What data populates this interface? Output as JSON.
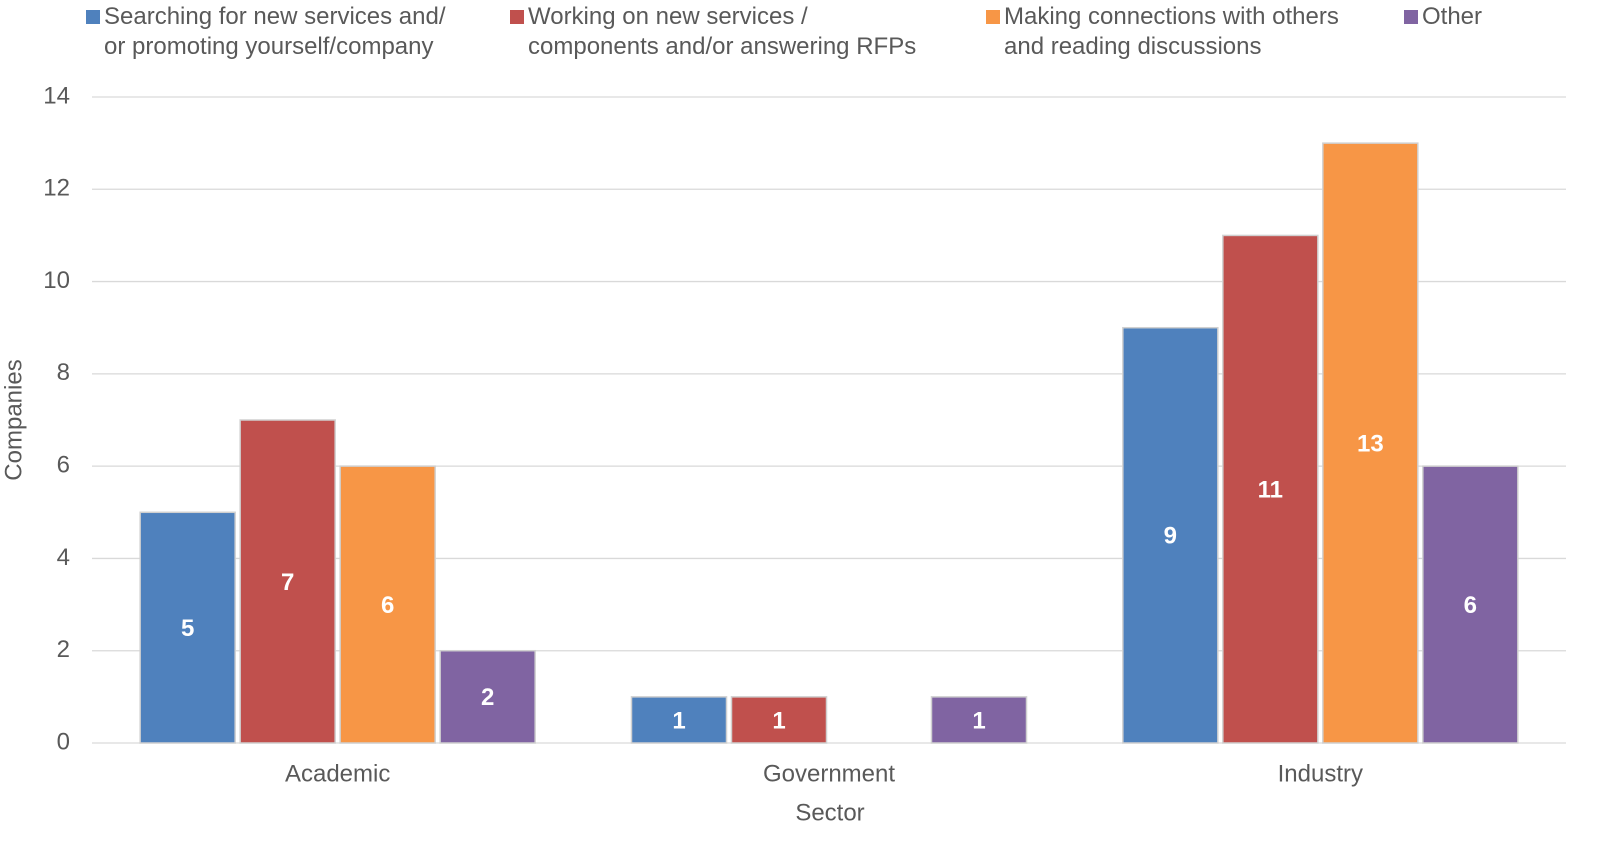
{
  "chart_data": {
    "type": "bar",
    "x_label": "Sector",
    "y_label": "Companies",
    "categories": [
      "Academic",
      "Government",
      "Industry"
    ],
    "series": [
      {
        "name": "Searching for new services and/\nor promoting yourself/company",
        "color": "#4f81bd",
        "values": [
          5,
          1,
          9
        ]
      },
      {
        "name": "Working on new services /\ncomponents and/or answering RFPs",
        "color": "#c0504d",
        "values": [
          7,
          1,
          11
        ]
      },
      {
        "name": "Making connections with others\nand reading discussions",
        "color": "#f79646",
        "values": [
          6,
          null,
          13
        ]
      },
      {
        "name": "Other",
        "color": "#8064a2",
        "values": [
          2,
          1,
          6
        ]
      }
    ],
    "ylim": [
      0,
      14
    ],
    "yticks": [
      0,
      2,
      4,
      6,
      8,
      10,
      12,
      14
    ],
    "grid": true,
    "legend": "top"
  }
}
